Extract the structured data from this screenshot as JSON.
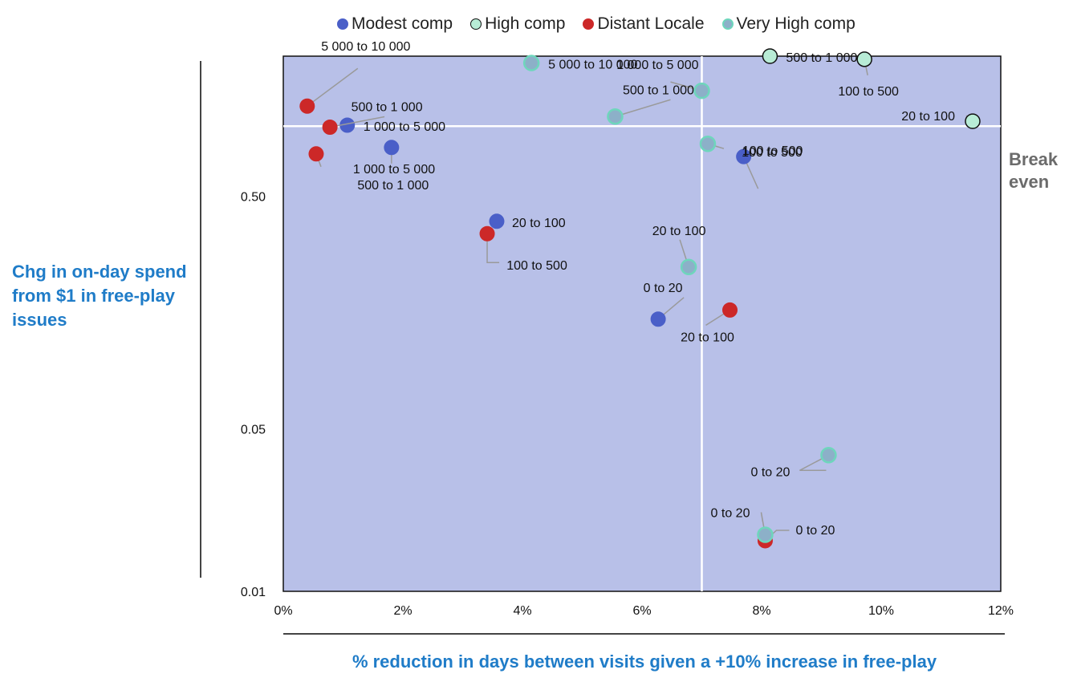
{
  "chart_data": {
    "type": "scatter",
    "xlabel": "% reduction in days between visits given a +10% increase in free-play",
    "ylabel": "Chg in on-day spend from $1 in free-play issues",
    "xlim": [
      0,
      0.12
    ],
    "ylim": [
      0.01,
      2.0
    ],
    "y_scale": "log",
    "x_ticks": [
      {
        "v": 0,
        "label": "0%"
      },
      {
        "v": 0.02,
        "label": "2%"
      },
      {
        "v": 0.04,
        "label": "4%"
      },
      {
        "v": 0.06,
        "label": "6%"
      },
      {
        "v": 0.08,
        "label": "8%"
      },
      {
        "v": 0.1,
        "label": "10%"
      },
      {
        "v": 0.12,
        "label": "12%"
      }
    ],
    "y_ticks": [
      {
        "v": 0.5,
        "label": "0.50"
      },
      {
        "v": 0.05,
        "label": "0.05"
      },
      {
        "v": 0.01,
        "label": "0.01"
      }
    ],
    "reference_lines": {
      "x": 0.07,
      "y": 1.0,
      "y_label": "Break even"
    },
    "legend_position": "top",
    "grid": false,
    "series": [
      {
        "name": "Modest comp",
        "fill": "#4a5fc8",
        "stroke": "#4a5fc8",
        "points": [
          {
            "x": 0.0107,
            "y": 1.01,
            "label": "1 000 to 5 000"
          },
          {
            "x": 0.0181,
            "y": 0.81,
            "label": "500 to 1 000"
          },
          {
            "x": 0.0357,
            "y": 0.39,
            "label": "20 to 100"
          },
          {
            "x": 0.0627,
            "y": 0.148,
            "label": "0 to 20"
          },
          {
            "x": 0.077,
            "y": 0.74,
            "label": "100 to 500"
          }
        ]
      },
      {
        "name": "High comp",
        "fill": "#b8ecd6",
        "stroke": "#111111",
        "points": [
          {
            "x": 0.0814,
            "y": 2.0,
            "label": "500 to 1 000"
          },
          {
            "x": 0.0972,
            "y": 1.94,
            "label": "100 to 500"
          },
          {
            "x": 0.1153,
            "y": 1.05,
            "label": "20 to 100"
          }
        ]
      },
      {
        "name": "Distant Locale",
        "fill": "#cc2828",
        "stroke": "#cc2828",
        "points": [
          {
            "x": 0.004,
            "y": 1.22,
            "label": "5 000 to 10 000"
          },
          {
            "x": 0.0078,
            "y": 0.99,
            "label": "500 to 1 000"
          },
          {
            "x": 0.0055,
            "y": 0.76,
            "label": "1 000 to 5 000"
          },
          {
            "x": 0.0341,
            "y": 0.345,
            "label": "100 to 500"
          },
          {
            "x": 0.0747,
            "y": 0.162,
            "label": "20 to 100"
          },
          {
            "x": 0.0806,
            "y": 0.0165,
            "label": "0 to 20"
          }
        ]
      },
      {
        "name": "Very High comp",
        "fill": "#8cb0c8",
        "stroke": "#6ed6bc",
        "points": [
          {
            "x": 0.0415,
            "y": 1.87,
            "label": "5 000 to 10 000"
          },
          {
            "x": 0.07,
            "y": 1.42,
            "label": "1 000 to 5 000"
          },
          {
            "x": 0.0555,
            "y": 1.1,
            "label": "500 to 1 000"
          },
          {
            "x": 0.071,
            "y": 0.84,
            "label": "100 to 500"
          },
          {
            "x": 0.0678,
            "y": 0.248,
            "label": "20 to 100"
          },
          {
            "x": 0.0912,
            "y": 0.0385,
            "label": "0 to 20"
          },
          {
            "x": 0.0806,
            "y": 0.0175,
            "label": "0 to 20"
          }
        ]
      }
    ]
  }
}
